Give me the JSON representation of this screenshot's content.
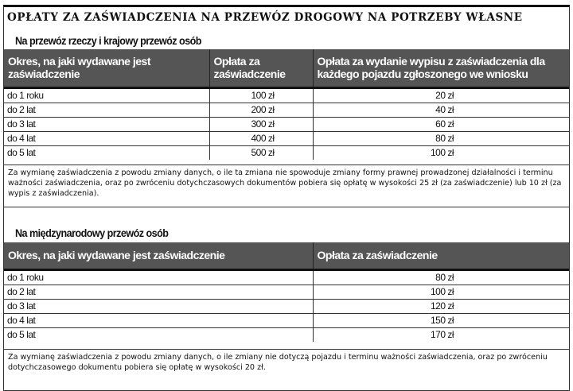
{
  "title": "OPŁATY ZA ZAŚWIADCZENIA NA PRZEWÓZ DROGOWY NA POTRZEBY WŁASNE",
  "section1": {
    "subtitle": "Na przewóz rzeczy i krajowy przewóz osób",
    "headers": [
      "Okres, na jaki wydawane jest zaświadczenie",
      "Opłata za zaświadczenie",
      "Opłata za wydanie wypisu z zaświadczenia dla każdego pojazdu zgłoszonego we wniosku"
    ],
    "rows": [
      [
        "do 1 roku",
        "100 zł",
        "20 zł"
      ],
      [
        "do 2 lat",
        "200 zł",
        "40 zł"
      ],
      [
        "do 3 lat",
        "300 zł",
        "60 zł"
      ],
      [
        "do 4 lat",
        "400 zł",
        "80 zł"
      ],
      [
        "do 5 lat",
        "500 zł",
        "100 zł"
      ]
    ],
    "note": "Za wymianę zaświadczenia z powodu zmiany danych, o ile ta zmiana nie spowoduje zmiany formy prawnej prowadzonej działalności i terminu ważności zaświadczenia, oraz po zwróceniu dotychczasowych dokumentów pobiera się opłatę w wysokości 25 zł (za zaświadczenie) lub 10 zł (za wypis z zaświadczenia)."
  },
  "section2": {
    "subtitle": "Na międzynarodowy przewóz osób",
    "headers": [
      "Okres, na jaki wydawane jest zaświadczenie",
      "Opłata za zaświadczenie"
    ],
    "rows": [
      [
        "do 1 roku",
        "80 zł"
      ],
      [
        "do 2 lat",
        "100 zł"
      ],
      [
        "do 3 lat",
        "120 zł"
      ],
      [
        "do 4 lat",
        "150 zł"
      ],
      [
        "do 5 lat",
        "170 zł"
      ]
    ],
    "note": "Za wymianę zaświadczenia z powodu zmiany danych, o ile zmiany nie dotyczą pojazdu i terminu ważności zaświadczenia, oraz po zwróceniu dotychczasowego dokumentu pobiera się opłatę w wysokości 20 zł."
  },
  "colors": {
    "header_bg": "#555555",
    "header_text": "#ffffff"
  }
}
